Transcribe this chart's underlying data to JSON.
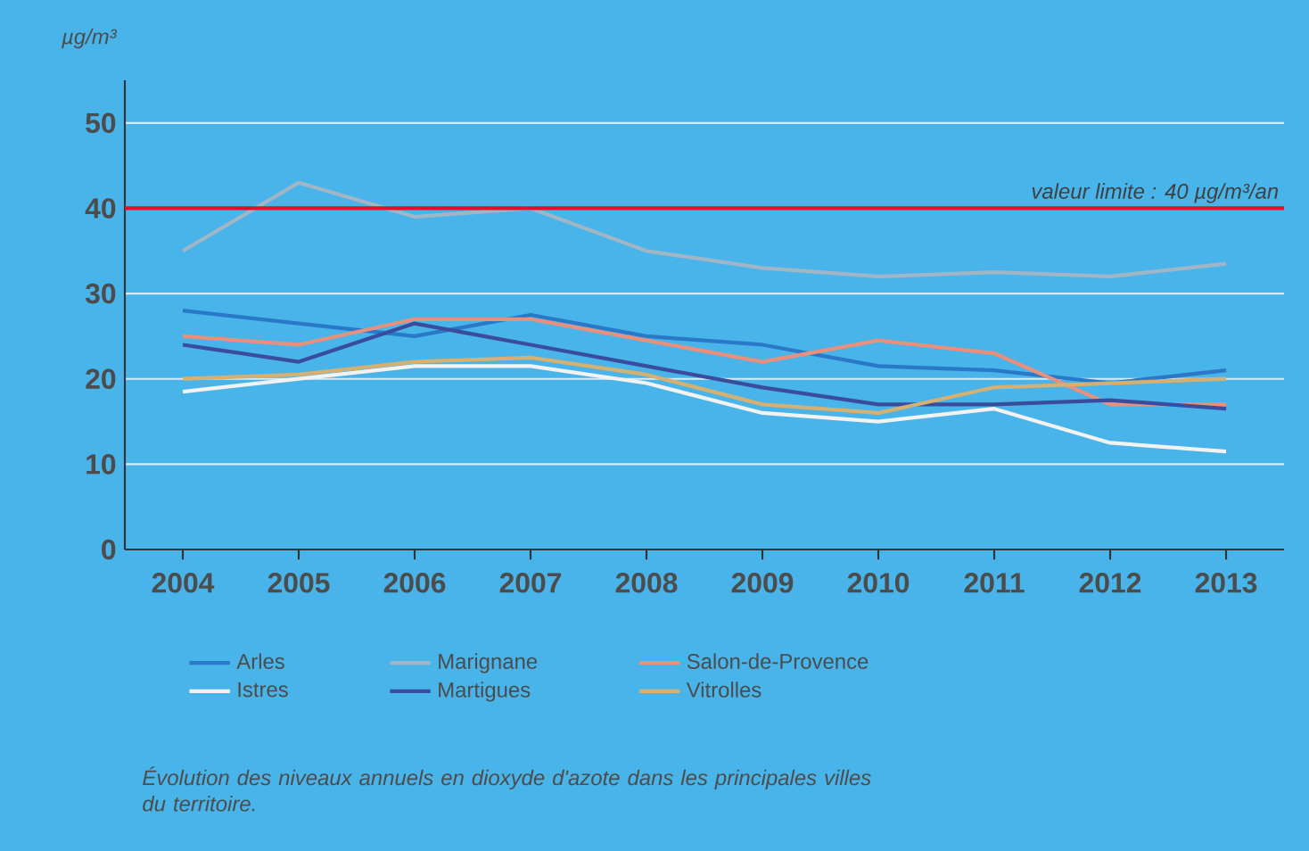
{
  "chart_data": {
    "type": "line",
    "ylabel": "µg/m³",
    "categories": [
      "2004",
      "2005",
      "2006",
      "2007",
      "2008",
      "2009",
      "2010",
      "2011",
      "2012",
      "2013"
    ],
    "series": [
      {
        "name": "Arles",
        "color": "#2a78c8",
        "values": [
          28,
          26.5,
          25,
          27.5,
          25,
          24,
          21.5,
          21,
          19.5,
          21
        ]
      },
      {
        "name": "Marignane",
        "color": "#9fb6c6",
        "values": [
          35,
          43,
          39,
          40,
          35,
          33,
          32,
          32.5,
          32,
          33.5
        ]
      },
      {
        "name": "Salon-de-Provence",
        "color": "#e8907c",
        "values": [
          25,
          24,
          27,
          27,
          24.5,
          22,
          24.5,
          23,
          17,
          17
        ]
      },
      {
        "name": "Istres",
        "color": "#f2f2f0",
        "values": [
          18.5,
          20,
          21.5,
          21.5,
          19.5,
          16,
          15,
          16.5,
          12.5,
          11.5
        ]
      },
      {
        "name": "Martigues",
        "color": "#3a4c9c",
        "values": [
          24,
          22,
          26.5,
          24,
          21.5,
          19,
          17,
          17,
          17.5,
          16.5
        ]
      },
      {
        "name": "Vitrolles",
        "color": "#d6b070",
        "values": [
          20,
          20.5,
          22,
          22.5,
          20.5,
          17,
          16,
          19,
          19.5,
          20
        ]
      }
    ],
    "ylim": [
      0,
      55
    ],
    "yticks": [
      0,
      10,
      20,
      30,
      40,
      50
    ],
    "grid": "y",
    "legend": "bottom",
    "line_style": "solid",
    "marker": "none",
    "ref_lines": [
      {
        "axis": "y",
        "value": 40,
        "label": "valeur limite : 40 µg/m³/an",
        "color": "#e0102a"
      }
    ],
    "annotations": [
      "Évolution des niveaux annuels en dioxyde d'azote dans les principales villes du territoire."
    ]
  }
}
